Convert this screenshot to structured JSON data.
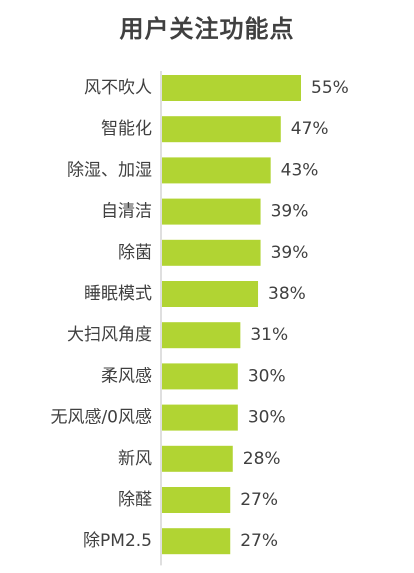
{
  "chart_data": {
    "type": "bar",
    "orientation": "horizontal",
    "title": "用户关注功能点",
    "categories": [
      "风不吹人",
      "智能化",
      "除湿、加湿",
      "自清洁",
      "除菌",
      "睡眠模式",
      "大扫风角度",
      "柔风感",
      "无风感/0风感",
      "新风",
      "除醛",
      "除PM2.5"
    ],
    "values": [
      55,
      47,
      43,
      39,
      39,
      38,
      31,
      30,
      30,
      28,
      27,
      27
    ],
    "value_labels": [
      "55%",
      "47%",
      "43%",
      "39%",
      "39%",
      "38%",
      "31%",
      "30%",
      "30%",
      "28%",
      "27%",
      "27%"
    ],
    "unit": "%",
    "xlim": [
      0,
      60
    ],
    "grid": false,
    "legend": "none",
    "colors": {
      "bar": "#b1d433",
      "axis": "#bfbfbf",
      "text": "#404040"
    }
  }
}
